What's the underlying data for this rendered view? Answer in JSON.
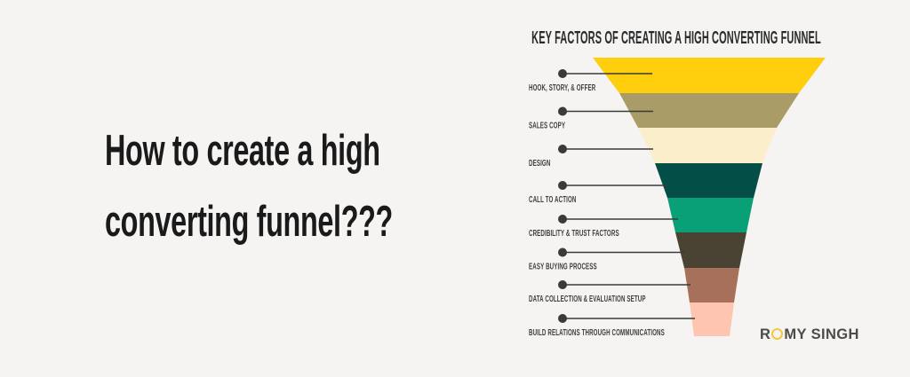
{
  "background_color": "#F5F4F2",
  "headline": {
    "line1": "How to create a high",
    "line2": "converting funnel???",
    "color": "#1A1A1A"
  },
  "infographic": {
    "title": "KEY FACTORS OF CREATING A HIGH CONVERTING FUNNEL",
    "title_color": "#2B2B2B",
    "connector_color": "#3A3A3A",
    "label_color": "#3E3E3E",
    "stages": [
      {
        "label": "HOOK, STORY, & OFFER",
        "color": "#FFCE0D"
      },
      {
        "label": "SALES COPY",
        "color": "#AA9C67"
      },
      {
        "label": "DESIGN",
        "color": "#FBEECB"
      },
      {
        "label": "CALL TO ACTION",
        "color": "#034F47"
      },
      {
        "label": "CREDIBILITY & TRUST FACTORS",
        "color": "#09A078"
      },
      {
        "label": "EASY BUYING PROCESS",
        "color": "#4A4333"
      },
      {
        "label": "DATA COLLECTION & EVALUATION SETUP",
        "color": "#A7705B"
      },
      {
        "label": "BUILD RELATIONS THROUGH COMMUNICATIONS",
        "color": "#FEC5B1"
      }
    ]
  },
  "brand": {
    "text": "ROMY SINGH",
    "part1": "R",
    "part2": "MY SINGH",
    "ring_color": "#F2C83D",
    "text_color": "#4D4A48"
  }
}
